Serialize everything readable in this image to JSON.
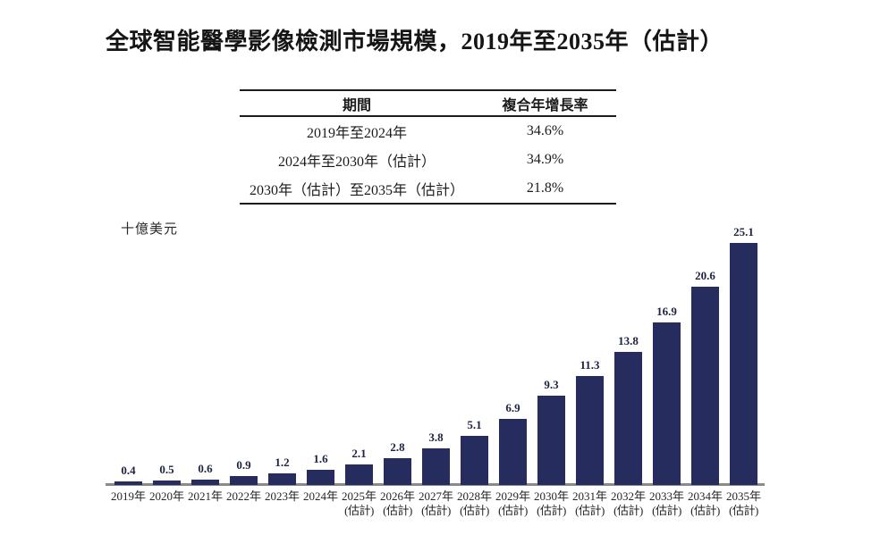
{
  "title": "全球智能醫學影像檢測市場規模，2019年至2035年（估計）",
  "cagr_table": {
    "headers": [
      "期間",
      "複合年增長率"
    ],
    "rows": [
      {
        "period": "2019年至2024年",
        "cagr": "34.6%"
      },
      {
        "period": "2024年至2030年（估計）",
        "cagr": "34.9%"
      },
      {
        "period": "2030年（估計）至2035年（估計）",
        "cagr": "21.8%"
      }
    ]
  },
  "chart_data": {
    "type": "bar",
    "title": "全球智能醫學影像檢測市場規模，2019年至2035年（估計）",
    "ylabel": "十億美元",
    "xlabel": "",
    "ylim": [
      0,
      26
    ],
    "grid": false,
    "legend": "none",
    "bar_color": "#272c5f",
    "axis_color": "#8a8a8a",
    "categories": [
      {
        "year": "2019年",
        "note": ""
      },
      {
        "year": "2020年",
        "note": ""
      },
      {
        "year": "2021年",
        "note": ""
      },
      {
        "year": "2022年",
        "note": ""
      },
      {
        "year": "2023年",
        "note": ""
      },
      {
        "year": "2024年",
        "note": ""
      },
      {
        "year": "2025年",
        "note": "(估計)"
      },
      {
        "year": "2026年",
        "note": "(估計)"
      },
      {
        "year": "2027年",
        "note": "(估計)"
      },
      {
        "year": "2028年",
        "note": "(估計)"
      },
      {
        "year": "2029年",
        "note": "(估計)"
      },
      {
        "year": "2030年",
        "note": "(估計)"
      },
      {
        "year": "2031年",
        "note": "(估計)"
      },
      {
        "year": "2032年",
        "note": "(估計)"
      },
      {
        "year": "2033年",
        "note": "(估計)"
      },
      {
        "year": "2034年",
        "note": "(估計)"
      },
      {
        "year": "2035年",
        "note": "(估計)"
      }
    ],
    "values": [
      0.4,
      0.5,
      0.6,
      0.9,
      1.2,
      1.6,
      2.1,
      2.8,
      3.8,
      5.1,
      6.9,
      9.3,
      11.3,
      13.8,
      16.9,
      20.6,
      25.1
    ]
  }
}
